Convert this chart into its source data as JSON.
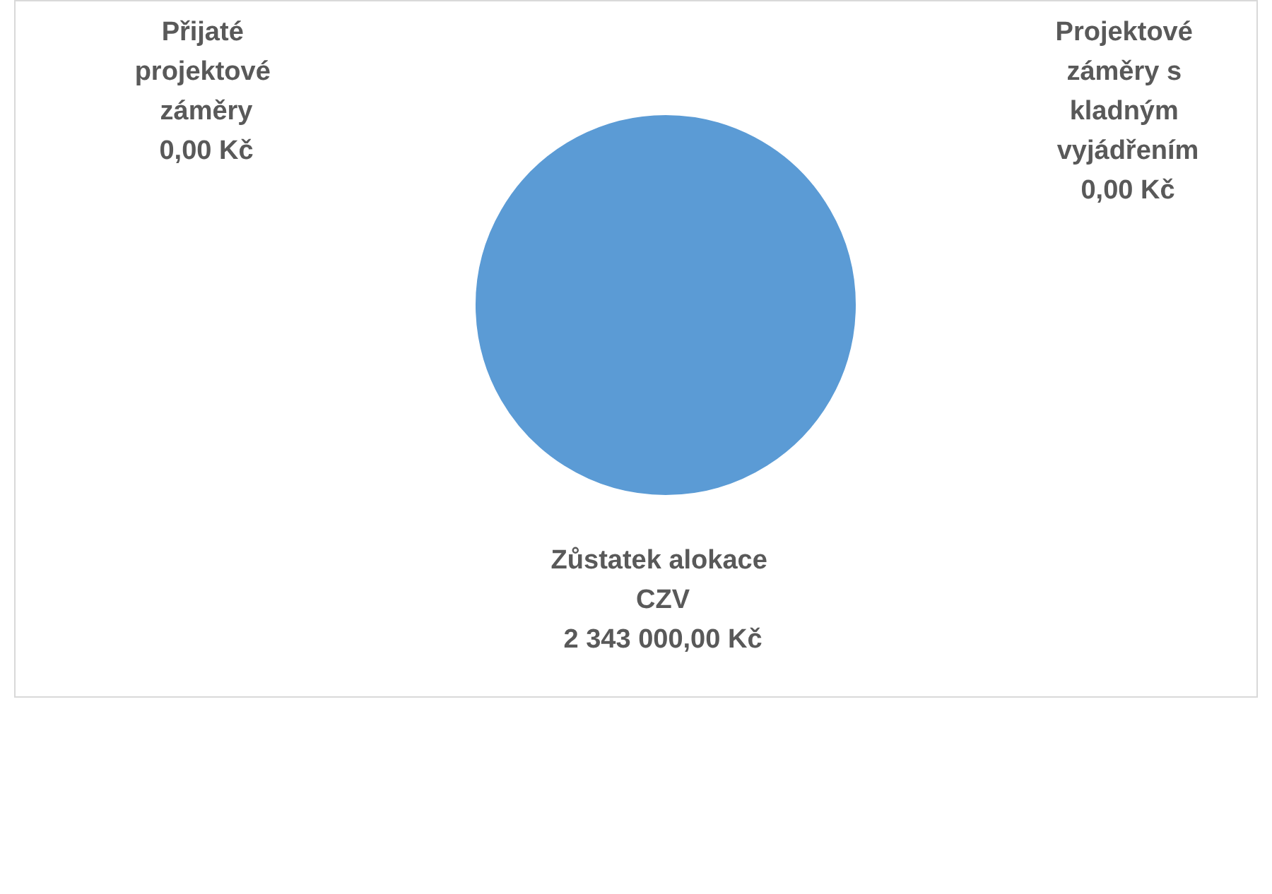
{
  "chart_data": {
    "type": "pie",
    "categories": [
      "Přijaté projektové záměry",
      "Projektové záměry s kladným vyjádřením",
      "Zůstatek alokace CZV"
    ],
    "values": [
      0,
      0,
      2343000
    ],
    "colors": [
      "#5b9bd5",
      "#5b9bd5",
      "#5b9bd5"
    ],
    "value_labels": [
      "0,00 Kč",
      "0,00 Kč",
      "2 343 000,00 Kč"
    ]
  }
}
